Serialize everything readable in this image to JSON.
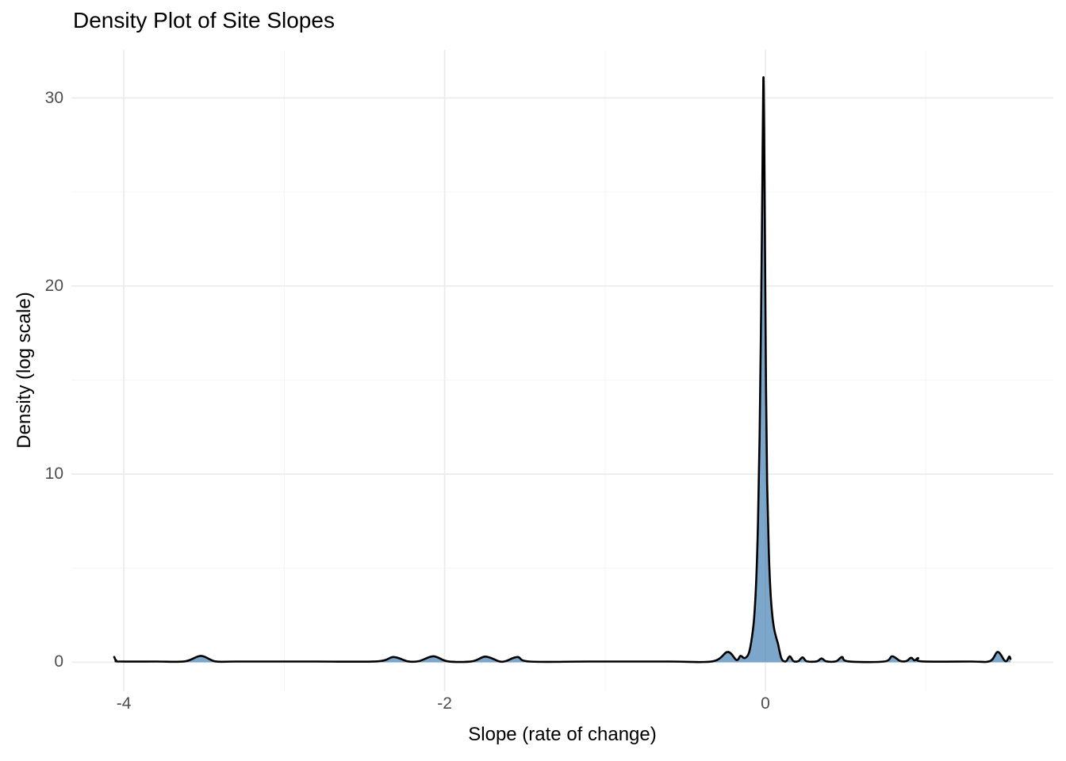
{
  "chart_data": {
    "type": "area",
    "title": "Density Plot of Site Slopes",
    "xlabel": "Slope (rate of change)",
    "ylabel": "Density (log scale)",
    "xlim": [
      -4.327,
      1.795
    ],
    "ylim": [
      -1.54,
      32.55
    ],
    "x_major_ticks": [
      -4,
      -2,
      0
    ],
    "x_tick_labels": [
      "-4",
      "-2",
      "0"
    ],
    "x_minor_ticks": [
      -3,
      -1,
      1
    ],
    "y_major_ticks": [
      0,
      10,
      20,
      30
    ],
    "y_tick_labels": [
      "0",
      "10",
      "20",
      "30"
    ],
    "y_minor_ticks": [
      5,
      15,
      25
    ],
    "grid": "major+minor, no axis lines, no tick marks",
    "legend": "none",
    "peak": {
      "x": -0.01,
      "density": 31.0
    },
    "colors": {
      "background": "#ffffff",
      "grid_major": "#ebebeb",
      "grid_minor": "#f5f5f5",
      "curve_stroke": "#000000",
      "area_fill": "rgba(70,130,180,0.7)",
      "tick_label": "#4d4d4d",
      "title_text": "#000000"
    },
    "series": [
      {
        "name": "site-slope-density",
        "points": [
          [
            -4.06,
            0.28
          ],
          [
            -4.048,
            0.1
          ],
          [
            -4.025,
            0.04
          ],
          [
            -3.8,
            0.04
          ],
          [
            -3.62,
            0.05
          ],
          [
            -3.52,
            0.34
          ],
          [
            -3.43,
            0.05
          ],
          [
            -3.3,
            0.04
          ],
          [
            -2.8,
            0.04
          ],
          [
            -2.42,
            0.05
          ],
          [
            -2.32,
            0.28
          ],
          [
            -2.23,
            0.05
          ],
          [
            -2.16,
            0.06
          ],
          [
            -2.07,
            0.32
          ],
          [
            -1.98,
            0.05
          ],
          [
            -1.83,
            0.05
          ],
          [
            -1.745,
            0.3
          ],
          [
            -1.66,
            0.05
          ],
          [
            -1.62,
            0.06
          ],
          [
            -1.545,
            0.28
          ],
          [
            -1.47,
            0.04
          ],
          [
            -1.1,
            0.04
          ],
          [
            -0.6,
            0.04
          ],
          [
            -0.33,
            0.05
          ],
          [
            -0.235,
            0.55
          ],
          [
            -0.18,
            0.12
          ],
          [
            -0.155,
            0.34
          ],
          [
            -0.13,
            0.22
          ],
          [
            -0.105,
            0.45
          ],
          [
            -0.088,
            1.1
          ],
          [
            -0.072,
            2.2
          ],
          [
            -0.058,
            4.2
          ],
          [
            -0.046,
            7.5
          ],
          [
            -0.036,
            12.0
          ],
          [
            -0.027,
            18.5
          ],
          [
            -0.019,
            25.5
          ],
          [
            -0.013,
            31.0
          ],
          [
            -0.008,
            28.5
          ],
          [
            -0.002,
            21.5
          ],
          [
            0.004,
            14.5
          ],
          [
            0.011,
            9.5
          ],
          [
            0.021,
            5.9
          ],
          [
            0.032,
            3.7
          ],
          [
            0.043,
            2.5
          ],
          [
            0.054,
            1.8
          ],
          [
            0.066,
            1.35
          ],
          [
            0.078,
            1.0
          ],
          [
            0.088,
            0.6
          ],
          [
            0.098,
            0.25
          ],
          [
            0.11,
            0.08
          ],
          [
            0.13,
            0.06
          ],
          [
            0.152,
            0.32
          ],
          [
            0.175,
            0.06
          ],
          [
            0.205,
            0.06
          ],
          [
            0.232,
            0.26
          ],
          [
            0.258,
            0.05
          ],
          [
            0.32,
            0.05
          ],
          [
            0.35,
            0.2
          ],
          [
            0.38,
            0.05
          ],
          [
            0.44,
            0.05
          ],
          [
            0.478,
            0.28
          ],
          [
            0.515,
            0.05
          ],
          [
            0.74,
            0.04
          ],
          [
            0.79,
            0.32
          ],
          [
            0.838,
            0.08
          ],
          [
            0.878,
            0.06
          ],
          [
            0.908,
            0.24
          ],
          [
            0.93,
            0.1
          ],
          [
            0.952,
            0.22
          ],
          [
            0.975,
            0.05
          ],
          [
            1.28,
            0.04
          ],
          [
            1.4,
            0.06
          ],
          [
            1.448,
            0.55
          ],
          [
            1.49,
            0.1
          ],
          [
            1.505,
            0.08
          ],
          [
            1.52,
            0.3
          ],
          [
            1.528,
            0.18
          ]
        ]
      }
    ]
  }
}
